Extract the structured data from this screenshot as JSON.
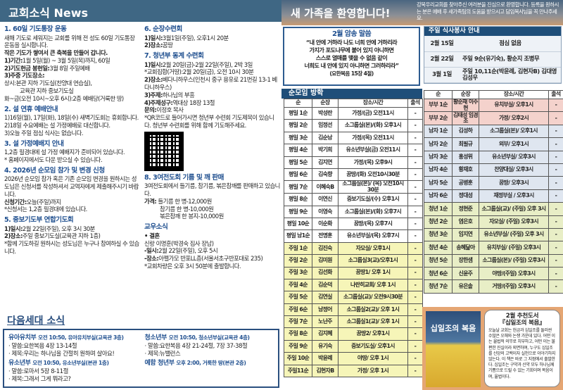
{
  "header": {
    "title": "교회소식 News"
  },
  "news_col1": [
    {
      "title": "1. 60일 기도통장 운동",
      "lines": [
        {
          "text": " 새해 기도로 세워지는 교회를 위해 전 성도 60일 기도통장 운동을 실시합니다."
        },
        {
          "text": " 작은 기도가 쌓여서 큰 축복을 만들어 갑니다.",
          "bold": true
        },
        {
          "label": "1)기간:",
          "text": "1월 5일(월) ~ 3월 5일(목)까지, 60일"
        },
        {
          "label": "2)기도헌금 봉헌일:",
          "text": "3월 8일 주일예배"
        },
        {
          "label": "3)주중 기도장소:",
          "text": ""
        },
        {
          "text": "상시:본관 지하 기도실(찬양대 연습실),"
        },
        {
          "text": "교육관 지하 중보기도실",
          "indent": true
        },
        {
          "text": "화~금(오전 10시~오후 6시):2층 예배당(거룩한 땅)"
        }
      ]
    },
    {
      "title": "2. 설 연휴 예배안내",
      "lines": [
        {
          "text": "1)16일(월), 17일(화), 18일(수) 새벽기도회는 휴회합니다."
        },
        {
          "text": "2)18일 수요예배는 설 가정예배로 대신합니다."
        },
        {
          "text": "3)오늘 주일 점심 식사는 없습니다."
        }
      ]
    },
    {
      "title": "3. 설 가정예배지 안내",
      "lines": [
        {
          "text": " 1,2층 필경대에 설 가정 예배지가 준비되어 있습니다."
        },
        {
          "text": "* 홈페이지에서도 다운 받으실 수 있습니다."
        }
      ]
    },
    {
      "title": "4. 2026년 순모임 참가 및 변경 신청",
      "lines": [
        {
          "text": " 2026년 순모임 참가 혹은 기존 순모임 변경을 원하시는 성도님은 신청서를 작성하셔서 교역자에게 제출해주시기 바랍니다."
        },
        {
          "label": "신청기간:",
          "text": "오늘(주일)까지"
        },
        {
          "text": "*신청서는 1,2층 필경대에 있습니다."
        }
      ]
    },
    {
      "title": "5. 중보기도부 연합기도회",
      "lines": [
        {
          "label": "1)일시:",
          "text": "2월 22일(주일), 오후 3시 30분"
        },
        {
          "label": "2)장소:",
          "text": "주일 중보기도실(교육관 지하 1층)"
        },
        {
          "text": "*함께 기도하길 원하시는 성도님은 누구나 참여하실 수 있습니다."
        }
      ]
    }
  ],
  "news_col2": [
    {
      "title": "6. 순장수련회",
      "lines": [
        {
          "label": "1)일시:",
          "text": "3월1일(주일), 오후1시 20분"
        },
        {
          "label": "2)장소:",
          "text": "꿈땅"
        }
      ]
    },
    {
      "title": "7. 청년부 동계 수련회",
      "qr": true,
      "lines": [
        {
          "label": "1)일시:",
          "text": "2월 20일(금)-2월 22일(주일), 2박 3일"
        },
        {
          "text": "*교회집합(거땅):2월 20일(금), 오전 10시 30분"
        },
        {
          "label": "2)장소:",
          "text": "베다니하우스(인천시 중구 용유로 21번길 13-1 베다니하우스)"
        },
        {
          "label": "3)주제:",
          "text": "하나님의 부흥"
        },
        {
          "label": "4)주제성구:",
          "text": "역대상 18장 13절"
        },
        {
          "label": "문의:",
          "text": "이정호 목사"
        },
        {
          "text": "*QR코드로 들어가시면 청년부 수련회 기도제목이 있습니다. 청년부 수련회를 위해 함께 기도해주세요."
        }
      ]
    },
    {
      "title": "8. 3여전도회 기름 및 깨 판매",
      "lines": [
        {
          "text": " 3여전도회에서 들기름, 참기름, 볶은참깨를 판매하고 있습니다."
        },
        {
          "label": "가격:",
          "text": " 들기름 한 병-12,000원"
        },
        {
          "text": "참기름 한 병-10,000원",
          "indent": true
        },
        {
          "text": "볶은참깨 한 봉지-10,000원",
          "indent": true
        }
      ]
    },
    {
      "title": "교우소식",
      "lines": [
        {
          "text": "• 결혼",
          "bold": true
        },
        {
          "text": "신랑 이명훈(박경숙 집사 장남)"
        },
        {
          "label": "-일시:",
          "text": "2월 22일(주일), 오후 5시"
        },
        {
          "label": "-장소:",
          "text": "아펠가모 반포LL층(서울서초구반포대로 235)"
        },
        {
          "text": "*교회차량은 오후 3시 50분에 출발합니다."
        }
      ]
    }
  ],
  "next_gen": {
    "title": "다음세대 소식",
    "groups": [
      {
        "name": "유아유치부",
        "info": "오전 10:50, 유아유치부실(교육관 3층)",
        "lines": [
          "· 말씀:요한복음 4장 13-14절",
          "· 제목:우리는 하나님을 간절히 원하며 살아요!"
        ]
      },
      {
        "name": "유소년부",
        "info": "오전 10:50, 유소년부실(본관 1층)",
        "lines": [
          "· 말씀:로마서 5장 8-11절",
          "· 제목:그래서 그게 뭐라고?"
        ]
      },
      {
        "name": "청소년부",
        "info": "오전 10:50, 청소년부실(교육관 4층)",
        "lines": [
          "· 말씀:요한복음 4장 21-24절, 7장 37-38절",
          "· 제목:뉴밸런스"
        ]
      },
      {
        "name": "예함 청년부",
        "info": "오후 2:00, 거룩한 땅(본관 2층)",
        "lines": []
      }
    ]
  },
  "banner": {
    "title": "새 가족을 환영합니다!",
    "text": "강북우리교회를 찾아주신 여러분을 진심으로 환영합니다. 등록을 원하시는 분은 예배 후 새가족팀의 도움을 받으시고 담임목사님을 꼭 만나주세요."
  },
  "verse": {
    "title": "2월  암송 말씀",
    "lines": [
      "“내 안에 거하라 나도 너희 안에 거하리라",
      "가지가 포도나무에 붙어 있지 아니하면",
      "스스로 열매를 맺을 수 없음 같이",
      "너희도 내 안에 있지 아니하면 그러하리라”"
    ],
    "ref": "(요한복음 15장 4절)"
  },
  "meal": {
    "title": "주일 식사봉사 안내",
    "rows": [
      {
        "date": "2월 15일",
        "text": "점심 없음"
      },
      {
        "date": "2월 22일",
        "text": "주일 9순(유기숙), 황순지  조병무"
      },
      {
        "date": "3월 1일",
        "text": "주일 10,11순(박윤례, 김현자B) 김대영 김성우"
      }
    ]
  },
  "small_groups": {
    "title": "순모임 방학",
    "headers": [
      "순",
      "순장",
      "장소/시간",
      "출석"
    ],
    "left": [
      [
        "평일 1순",
        "박성란",
        "가정/(금) 오전11시",
        "-",
        "w"
      ],
      [
        "평일 2순",
        "임정선",
        "소그룹실(본)/(화) 오후1시",
        "-",
        "w"
      ],
      [
        "평일 3순",
        "김순남",
        "가정/(목) 오전11시",
        "-",
        "w"
      ],
      [
        "평일 4순",
        "박기희",
        "유소년부실(금) 오전11시",
        "-",
        "w"
      ],
      [
        "평일 5순",
        "김지연",
        "가정/(목) 오후9시",
        "-",
        "w"
      ],
      [
        "평일 6순",
        "김숙향",
        "꿈땅/(화) 오전10시30분",
        "-",
        "w"
      ],
      [
        "평일 7순",
        "이혜숙B",
        "소그룹실(본)/ (목) 오전10시30분",
        "-",
        "w"
      ],
      [
        "평일 8순",
        "이연신",
        "중보기도실/(수) 오후1시",
        "-",
        "w"
      ],
      [
        "평일 9순",
        "이영숙",
        "소그룹실(본)/(화) 오후7시",
        "-",
        "w"
      ],
      [
        "평일 10순",
        "이순화",
        "꿈땅/(목) 오후7시",
        "-",
        "w"
      ],
      [
        "평일 남1순",
        "전명훈",
        "유소년부실/(목) 오후7시",
        "-",
        "w"
      ],
      [
        "주일 1순",
        "김진숙",
        "자모실/ 오후1시",
        "-",
        "s"
      ],
      [
        "주일 2순",
        "김미원",
        "소그룹실3(교)/오후1시",
        "-",
        "s"
      ],
      [
        "주일 3순",
        "김선화",
        "꿈땅1/ 오후 1시",
        "-",
        "s"
      ],
      [
        "주일 4순",
        "김순덕",
        "나란히교회/ 오후 1시",
        "-",
        "s"
      ],
      [
        "주일 5순",
        "김연실",
        "소그룹실(교)/ 오전9시30분",
        "-",
        "s"
      ],
      [
        "주일 6순",
        "남정어",
        "소그룹실2(교)/ 오후 1시",
        "-",
        "s"
      ],
      [
        "주일 7순",
        "노난주",
        "소그룹실1(교)/ 오후 1시",
        "-",
        "s"
      ],
      [
        "주일 8순",
        "김지혜",
        "꿈땅2/ 오후1시",
        "-",
        "s"
      ],
      [
        "주일 9순",
        "유기숙",
        "중보기도실/ 오후1시",
        "-",
        "s"
      ],
      [
        "주일 10순",
        "박윤례",
        "야땅/ 오후 1시",
        "-",
        "s"
      ],
      [
        "주일11순",
        "김현자B",
        "가정/ 오후 1시",
        "-",
        "s"
      ]
    ],
    "right": [
      [
        "부부 1순",
        "황순재 이주현",
        "유치부실/ 오후1시",
        "-",
        "c"
      ],
      [
        "부부 2순",
        "김태성 임경조",
        "가정/ 오후2시",
        "-",
        "c"
      ],
      [
        "남자 1순",
        "김성하",
        "소그룹실(본)/ 오후1시",
        "-",
        "m"
      ],
      [
        "남자 2순",
        "최필규",
        "외부/ 오후1시",
        "-",
        "m"
      ],
      [
        "남자 3순",
        "홍성위",
        "유소년부실/ 오후3시",
        "-",
        "m"
      ],
      [
        "남자 4순",
        "황재호",
        "찬양대실/ 오후3시",
        "-",
        "m"
      ],
      [
        "남자 5순",
        "공병훈",
        "꿈땅/ 오후3시",
        "-",
        "m"
      ],
      [
        "남자 6순",
        "정대성",
        "재정부실 / 오후3시",
        "-",
        "m"
      ],
      [
        "청년 1순",
        "정현준",
        "소그룹실(교)/ (주일) 오후 3시",
        "-",
        "y"
      ],
      [
        "청년 2순",
        "염은호",
        "자모실/ (주일) 오후3시",
        "-",
        "y"
      ],
      [
        "청년 3순",
        "임지연",
        "유소년부실/ (주일) 오후 3시",
        "-",
        "y"
      ],
      [
        "청년 4순",
        "송혜닮아",
        "유치부실/ (주일) 오후3시",
        "-",
        "y"
      ],
      [
        "청년 5순",
        "장한샘",
        "소그룹실(본)/ (주일) 오후3시",
        "-",
        "y"
      ],
      [
        "청년 6순",
        "신윤주",
        "야땅/(주일) 오후3시",
        "-",
        "y"
      ],
      [
        "청년 7순",
        "유은솔",
        "거땅/(주일) 오후3시",
        "-",
        "y"
      ]
    ]
  },
  "book": {
    "cover_title": "십일조의 복음",
    "heading": "2월 추천도서",
    "title": "『십일조의 복음』",
    "text": "오늘날 교회는 헌금과 십일조를 둘러싼 수많은 오해와 논쟁 가운데 있다. 어떤 이는 율법적 의무로 치부하고, 어떤 이는 불편한 진실이라 외면하며, 누구도 십일조를 신앙의 고백이자 실천으로 이야기하지 않는다. 이 책은 바로 그 지점에서 출발한다. 십일조는 구약과 신약 모두 하나님께 기쁨으로 드릴 수 있는 기회이며 복음이며, 율법이다."
  }
}
